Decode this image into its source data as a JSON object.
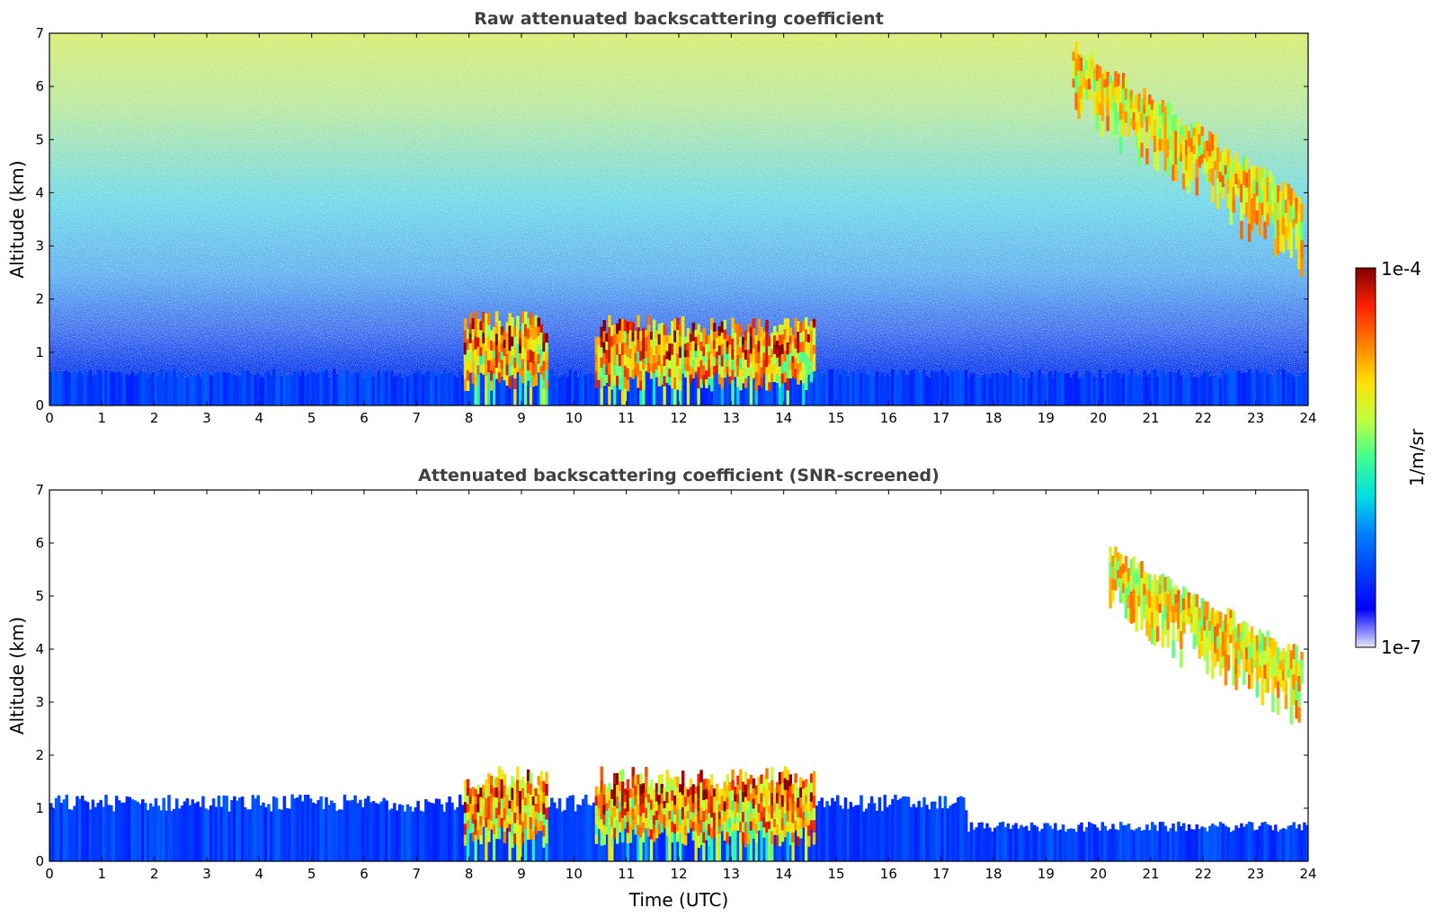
{
  "chart_data": [
    {
      "type": "heatmap",
      "title": "Raw attenuated backscattering coefficient",
      "xlabel": "",
      "ylabel": "Altitude (km)",
      "xlim": [
        0,
        24
      ],
      "ylim": [
        0,
        7
      ],
      "x_ticks": [
        "0",
        "1",
        "2",
        "3",
        "4",
        "5",
        "6",
        "7",
        "8",
        "9",
        "10",
        "11",
        "12",
        "13",
        "14",
        "15",
        "16",
        "17",
        "18",
        "19",
        "20",
        "21",
        "22",
        "23",
        "24"
      ],
      "y_ticks": [
        "0",
        "1",
        "2",
        "3",
        "4",
        "5",
        "6",
        "7"
      ],
      "features": [
        {
          "kind": "noise-background",
          "description_level": "high-noise aloft, increasing with altitude"
        },
        {
          "kind": "boundary-layer",
          "x": [
            0,
            24
          ],
          "y_top": 0.6
        },
        {
          "kind": "low-cloud",
          "x": [
            7.9,
            9.5
          ],
          "y": [
            0.5,
            1.8
          ]
        },
        {
          "kind": "low-cloud",
          "x": [
            10.4,
            14.6
          ],
          "y": [
            0.5,
            1.7
          ]
        },
        {
          "kind": "cirrus",
          "x": [
            19.5,
            23.9
          ],
          "y": [
            2.8,
            6.9
          ]
        }
      ]
    },
    {
      "type": "heatmap",
      "title": "Attenuated backscattering coefficient (SNR-screened)",
      "xlabel": "Time (UTC)",
      "ylabel": "Altitude (km)",
      "xlim": [
        0,
        24
      ],
      "ylim": [
        0,
        7
      ],
      "x_ticks": [
        "0",
        "1",
        "2",
        "3",
        "4",
        "5",
        "6",
        "7",
        "8",
        "9",
        "10",
        "11",
        "12",
        "13",
        "14",
        "15",
        "16",
        "17",
        "18",
        "19",
        "20",
        "21",
        "22",
        "23",
        "24"
      ],
      "y_ticks": [
        "0",
        "1",
        "2",
        "3",
        "4",
        "5",
        "6",
        "7"
      ],
      "features": [
        {
          "kind": "boundary-layer",
          "x": [
            0,
            17.5
          ],
          "y_top": 1.1
        },
        {
          "kind": "boundary-layer",
          "x": [
            17.5,
            24
          ],
          "y_top": 0.65
        },
        {
          "kind": "low-cloud",
          "x": [
            7.9,
            9.5
          ],
          "y": [
            0.5,
            1.8
          ]
        },
        {
          "kind": "low-cloud",
          "x": [
            10.4,
            14.6
          ],
          "y": [
            0.5,
            1.8
          ]
        },
        {
          "kind": "cirrus",
          "x": [
            20.2,
            23.9
          ],
          "y": [
            2.8,
            6.0
          ]
        }
      ]
    }
  ],
  "colorbar": {
    "label": "1/m/sr",
    "max_label": "1e-4",
    "min_label": "1e-7",
    "range": [
      1e-07,
      0.0001
    ],
    "scale": "log",
    "colormap": "jet"
  }
}
